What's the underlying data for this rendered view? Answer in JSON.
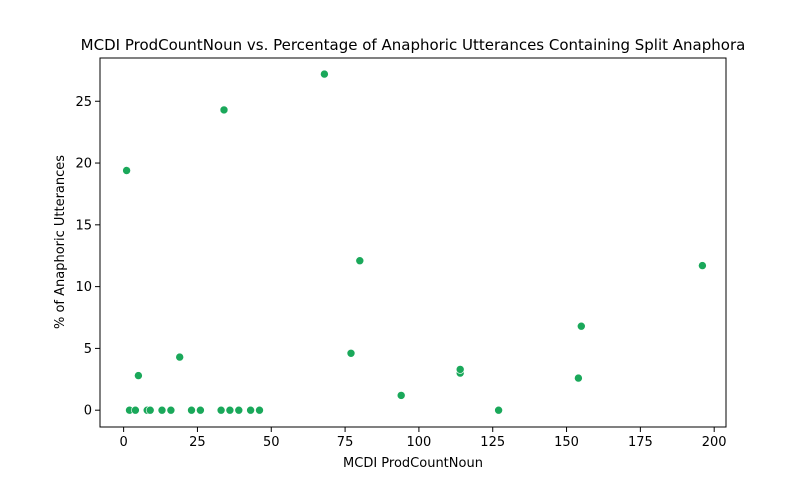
{
  "chart_data": {
    "type": "scatter",
    "title": "MCDI ProdCountNoun vs. Percentage of Anaphoric Utterances Containing Split Anaphora",
    "xlabel": "MCDI ProdCountNoun",
    "ylabel": "% of Anaphoric Utterances",
    "xlim": [
      -8,
      204
    ],
    "ylim": [
      -1.36,
      28.5
    ],
    "xticks": [
      0,
      25,
      50,
      75,
      100,
      125,
      150,
      175,
      200
    ],
    "yticks": [
      0,
      5,
      10,
      15,
      20,
      25
    ],
    "grid": false,
    "color": "#1aa85a",
    "x": [
      1,
      2,
      4,
      5,
      8,
      9,
      13,
      16,
      19,
      23,
      26,
      33,
      34,
      36,
      39,
      43,
      46,
      68,
      77,
      80,
      94,
      114,
      114,
      127,
      154,
      155,
      196
    ],
    "y": [
      19.4,
      0,
      0,
      2.8,
      0,
      0,
      0,
      0,
      4.3,
      0,
      0,
      0,
      24.3,
      0,
      0,
      0,
      0,
      27.2,
      4.6,
      12.1,
      1.2,
      3.0,
      3.3,
      0,
      2.6,
      6.8,
      11.7
    ]
  }
}
